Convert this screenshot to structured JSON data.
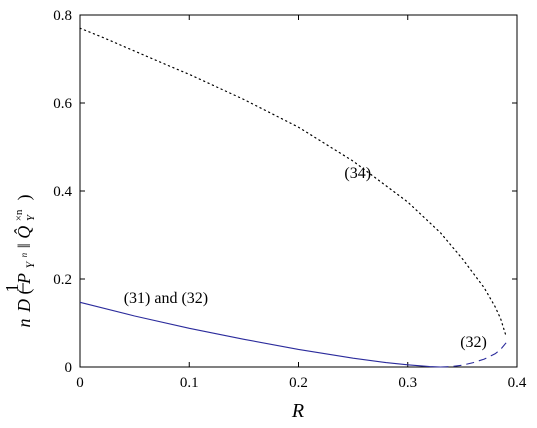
{
  "chart_data": {
    "type": "line",
    "title": "",
    "xlabel": "R",
    "ylabel": {
      "prefix_num": "1",
      "prefix_den": "n",
      "D": "D",
      "P": "P",
      "P_sub": "Y",
      "P_sub_sup": "n",
      "sep": "‖",
      "Q": "Q̂",
      "Q_sup": "×n",
      "Q_sub": "Y",
      "close": ")",
      "open": "("
    },
    "xlim": [
      0,
      0.4
    ],
    "ylim": [
      0,
      0.8
    ],
    "xticks": [
      "0",
      "0.1",
      "0.2",
      "0.3",
      "0.4"
    ],
    "yticks": [
      "0",
      "0.2",
      "0.4",
      "0.6",
      "0.8"
    ],
    "grid": false,
    "series": [
      {
        "name": "(34)",
        "style": "dotted",
        "color": "#000000",
        "x": [
          0.0,
          0.02,
          0.05,
          0.08,
          0.1,
          0.15,
          0.2,
          0.25,
          0.3,
          0.33,
          0.35,
          0.37,
          0.38,
          0.385,
          0.39
        ],
        "y": [
          0.77,
          0.75,
          0.718,
          0.686,
          0.665,
          0.608,
          0.545,
          0.468,
          0.375,
          0.305,
          0.246,
          0.18,
          0.137,
          0.11,
          0.07
        ]
      },
      {
        "name": "(31) and (32)",
        "style": "solid",
        "color": "#2b2b9c",
        "x": [
          0.0,
          0.05,
          0.1,
          0.15,
          0.2,
          0.25,
          0.28,
          0.3,
          0.31,
          0.32,
          0.325,
          0.33
        ],
        "y": [
          0.147,
          0.116,
          0.088,
          0.063,
          0.04,
          0.02,
          0.01,
          0.005,
          0.003,
          0.001,
          0.0005,
          0.0
        ]
      },
      {
        "name": "(32)",
        "style": "dashed",
        "color": "#2b2b9c",
        "x": [
          0.33,
          0.34,
          0.35,
          0.36,
          0.37,
          0.38,
          0.385,
          0.39
        ],
        "y": [
          0.0,
          0.001,
          0.004,
          0.01,
          0.018,
          0.03,
          0.04,
          0.055
        ]
      }
    ],
    "annotations": [
      {
        "text": "(34)",
        "x": 0.242,
        "y": 0.43
      },
      {
        "text": "(31) and (32)",
        "x": 0.04,
        "y": 0.145
      },
      {
        "text": "(32)",
        "x": 0.348,
        "y": 0.045
      }
    ]
  }
}
